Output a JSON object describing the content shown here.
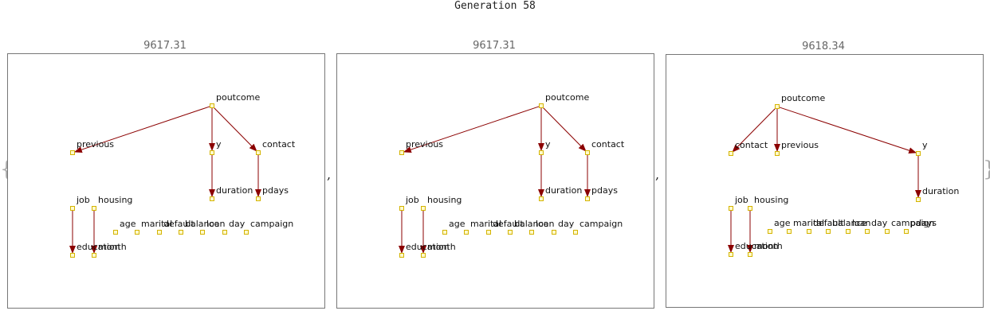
{
  "title": "Generation 58",
  "colors": {
    "node_fill": "#fffacd",
    "node_stroke": "#d4b400",
    "edge": "#8b0000",
    "frame": "#777777"
  },
  "separators": {
    "open_brace": "{",
    "close_brace": "}",
    "comma": ","
  },
  "panels": [
    {
      "score": "9617.31",
      "nodes": [
        "poutcome",
        "previous",
        "y",
        "contact",
        "duration",
        "pdays",
        "job",
        "housing",
        "age",
        "marital",
        "default",
        "balance",
        "loan",
        "day",
        "campaign",
        "education",
        "month"
      ],
      "edges": [
        [
          "poutcome",
          "previous"
        ],
        [
          "poutcome",
          "y"
        ],
        [
          "poutcome",
          "contact"
        ],
        [
          "y",
          "duration"
        ],
        [
          "contact",
          "pdays"
        ],
        [
          "job",
          "education"
        ],
        [
          "housing",
          "month"
        ]
      ]
    },
    {
      "score": "9617.31",
      "nodes": [
        "poutcome",
        "previous",
        "y",
        "contact",
        "duration",
        "pdays",
        "job",
        "housing",
        "age",
        "marital",
        "default",
        "balance",
        "loan",
        "day",
        "campaign",
        "education",
        "month"
      ],
      "edges": [
        [
          "poutcome",
          "previous"
        ],
        [
          "poutcome",
          "y"
        ],
        [
          "poutcome",
          "contact"
        ],
        [
          "y",
          "duration"
        ],
        [
          "contact",
          "pdays"
        ],
        [
          "job",
          "education"
        ],
        [
          "housing",
          "month"
        ]
      ]
    },
    {
      "score": "9618.34",
      "nodes": [
        "poutcome",
        "contact",
        "previous",
        "y",
        "duration",
        "job",
        "housing",
        "age",
        "marital",
        "default",
        "balance",
        "loan",
        "day",
        "campaign",
        "pdays",
        "education",
        "month"
      ],
      "edges": [
        [
          "poutcome",
          "contact"
        ],
        [
          "poutcome",
          "previous"
        ],
        [
          "poutcome",
          "y"
        ],
        [
          "y",
          "duration"
        ],
        [
          "job",
          "education"
        ],
        [
          "housing",
          "month"
        ]
      ]
    }
  ]
}
